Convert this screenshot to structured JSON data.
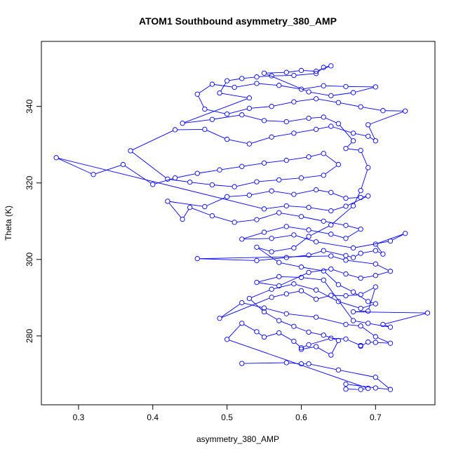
{
  "chart_data": {
    "type": "line",
    "title": "ATOM1 Southbound asymmetry_380_AMP",
    "xlabel": "asymmetry_380_AMP",
    "ylabel": "Theta (K)",
    "xlim": [
      0.25,
      0.78
    ],
    "ylim": [
      262,
      357
    ],
    "x_ticks": [
      0.3,
      0.4,
      0.5,
      0.6,
      0.7
    ],
    "x_tick_labels": [
      "0.3",
      "0.4",
      "0.5",
      "0.6",
      "0.7"
    ],
    "y_ticks": [
      280,
      300,
      320,
      340
    ],
    "y_tick_labels": [
      "280",
      "300",
      "320",
      "340"
    ],
    "markers": "open-circle",
    "series": [
      {
        "color": "#0000ff",
        "points": [
          [
            0.52,
            272.8
          ],
          [
            0.58,
            273.0
          ],
          [
            0.6,
            272.7
          ],
          [
            0.61,
            272.7
          ],
          [
            0.65,
            271.1
          ],
          [
            0.7,
            269.2
          ],
          [
            0.72,
            266.0
          ],
          [
            0.7,
            266.4
          ],
          [
            0.66,
            267.4
          ],
          [
            0.66,
            266.1
          ],
          [
            0.68,
            266.0
          ],
          [
            0.69,
            266.3
          ],
          [
            0.5,
            279.1
          ],
          [
            0.52,
            283.3
          ],
          [
            0.54,
            281.1
          ],
          [
            0.55,
            279.7
          ],
          [
            0.57,
            280.8
          ],
          [
            0.59,
            278.6
          ],
          [
            0.6,
            276.9
          ],
          [
            0.61,
            277.7
          ],
          [
            0.64,
            279.4
          ],
          [
            0.66,
            279.2
          ],
          [
            0.68,
            277.5
          ],
          [
            0.68,
            277.3
          ],
          [
            0.69,
            278.4
          ],
          [
            0.7,
            278.3
          ],
          [
            0.72,
            278.1
          ],
          [
            0.7,
            279.8
          ],
          [
            0.68,
            282.6
          ],
          [
            0.66,
            283.0
          ],
          [
            0.62,
            284.9
          ],
          [
            0.58,
            285.8
          ],
          [
            0.55,
            287.3
          ],
          [
            0.52,
            288.7
          ],
          [
            0.49,
            284.6
          ],
          [
            0.56,
            290.1
          ],
          [
            0.58,
            291.0
          ],
          [
            0.6,
            291.8
          ],
          [
            0.62,
            289.6
          ],
          [
            0.64,
            290.6
          ],
          [
            0.66,
            290.5
          ],
          [
            0.68,
            290.8
          ],
          [
            0.7,
            292.8
          ],
          [
            0.69,
            286.5
          ],
          [
            0.67,
            286.3
          ],
          [
            0.77,
            286.0
          ],
          [
            0.71,
            283.0
          ],
          [
            0.72,
            282.3
          ],
          [
            0.69,
            283.3
          ],
          [
            0.67,
            284.0
          ],
          [
            0.63,
            294.6
          ],
          [
            0.6,
            295.3
          ],
          [
            0.57,
            295.5
          ],
          [
            0.54,
            294.0
          ],
          [
            0.57,
            293.1
          ],
          [
            0.61,
            296.6
          ],
          [
            0.64,
            297.5
          ],
          [
            0.66,
            296.2
          ],
          [
            0.68,
            295.1
          ],
          [
            0.7,
            295.8
          ],
          [
            0.72,
            296.9
          ],
          [
            0.7,
            298.8
          ],
          [
            0.66,
            299.8
          ],
          [
            0.64,
            300.9
          ],
          [
            0.46,
            300.2
          ],
          [
            0.54,
            299.7
          ],
          [
            0.58,
            300.5
          ],
          [
            0.61,
            301.1
          ],
          [
            0.63,
            302.3
          ],
          [
            0.66,
            301.0
          ],
          [
            0.67,
            300.5
          ],
          [
            0.68,
            301.6
          ],
          [
            0.7,
            302.3
          ],
          [
            0.71,
            301.4
          ],
          [
            0.7,
            304.0
          ],
          [
            0.74,
            306.8
          ],
          [
            0.72,
            304.8
          ],
          [
            0.67,
            303.0
          ],
          [
            0.62,
            304.6
          ],
          [
            0.59,
            306.4
          ],
          [
            0.56,
            305.5
          ],
          [
            0.52,
            305.3
          ],
          [
            0.55,
            307.1
          ],
          [
            0.58,
            308.6
          ],
          [
            0.61,
            307.7
          ],
          [
            0.64,
            306.6
          ],
          [
            0.66,
            305.5
          ],
          [
            0.68,
            307.9
          ],
          [
            0.66,
            308.9
          ],
          [
            0.63,
            310.0
          ],
          [
            0.6,
            311.2
          ],
          [
            0.57,
            312.2
          ],
          [
            0.54,
            310.4
          ],
          [
            0.51,
            309.7
          ],
          [
            0.48,
            311.4
          ],
          [
            0.45,
            313.6
          ],
          [
            0.44,
            310.5
          ],
          [
            0.42,
            315.2
          ],
          [
            0.47,
            313.8
          ],
          [
            0.5,
            316.4
          ],
          [
            0.53,
            316.8
          ],
          [
            0.56,
            317.9
          ],
          [
            0.59,
            317.0
          ],
          [
            0.62,
            318.2
          ],
          [
            0.64,
            317.5
          ],
          [
            0.66,
            316.0
          ],
          [
            0.68,
            316.2
          ],
          [
            0.69,
            316.6
          ],
          [
            0.66,
            313.9
          ],
          [
            0.64,
            312.7
          ],
          [
            0.61,
            313.6
          ],
          [
            0.58,
            314.0
          ],
          [
            0.55,
            313.2
          ],
          [
            0.27,
            326.6
          ],
          [
            0.32,
            322.2
          ],
          [
            0.36,
            324.8
          ],
          [
            0.4,
            319.6
          ],
          [
            0.43,
            321.3
          ],
          [
            0.46,
            322.5
          ],
          [
            0.49,
            323.4
          ],
          [
            0.52,
            324.3
          ],
          [
            0.55,
            325.2
          ],
          [
            0.58,
            325.9
          ],
          [
            0.61,
            326.8
          ],
          [
            0.63,
            327.7
          ],
          [
            0.65,
            324.8
          ],
          [
            0.63,
            322.0
          ],
          [
            0.6,
            321.3
          ],
          [
            0.57,
            320.8
          ],
          [
            0.54,
            320.3
          ],
          [
            0.51,
            319.0
          ],
          [
            0.48,
            319.5
          ],
          [
            0.45,
            320.2
          ],
          [
            0.42,
            321.0
          ],
          [
            0.37,
            328.4
          ],
          [
            0.43,
            333.9
          ],
          [
            0.47,
            334.0
          ],
          [
            0.5,
            331.4
          ],
          [
            0.53,
            330.2
          ],
          [
            0.56,
            332.0
          ],
          [
            0.59,
            333.0
          ],
          [
            0.62,
            334.0
          ],
          [
            0.64,
            334.8
          ],
          [
            0.67,
            333.0
          ],
          [
            0.69,
            332.2
          ],
          [
            0.7,
            331.0
          ],
          [
            0.69,
            335.2
          ],
          [
            0.74,
            338.8
          ],
          [
            0.71,
            338.9
          ],
          [
            0.68,
            339.9
          ],
          [
            0.65,
            341.0
          ],
          [
            0.62,
            342.0
          ],
          [
            0.59,
            341.2
          ],
          [
            0.56,
            340.0
          ],
          [
            0.53,
            339.5
          ],
          [
            0.5,
            338.0
          ],
          [
            0.47,
            339.3
          ],
          [
            0.46,
            343.2
          ],
          [
            0.48,
            345.8
          ],
          [
            0.51,
            345.0
          ],
          [
            0.54,
            346.0
          ],
          [
            0.57,
            345.5
          ],
          [
            0.6,
            344.5
          ],
          [
            0.63,
            345.4
          ],
          [
            0.66,
            345.2
          ],
          [
            0.7,
            345.1
          ],
          [
            0.67,
            343.6
          ],
          [
            0.64,
            342.8
          ],
          [
            0.61,
            343.8
          ],
          [
            0.55,
            348.7
          ],
          [
            0.58,
            348.9
          ],
          [
            0.6,
            349.4
          ],
          [
            0.62,
            349.2
          ],
          [
            0.64,
            350.6
          ],
          [
            0.63,
            350.2
          ],
          [
            0.62,
            348.6
          ],
          [
            0.59,
            348.1
          ],
          [
            0.56,
            348.0
          ],
          [
            0.54,
            347.7
          ],
          [
            0.52,
            347.3
          ],
          [
            0.5,
            346.7
          ],
          [
            0.49,
            343.5
          ],
          [
            0.53,
            342.2
          ],
          [
            0.44,
            335.6
          ],
          [
            0.48,
            336.6
          ],
          [
            0.52,
            337.8
          ],
          [
            0.55,
            336.3
          ],
          [
            0.58,
            336.0
          ],
          [
            0.61,
            336.9
          ],
          [
            0.63,
            337.2
          ],
          [
            0.65,
            335.5
          ],
          [
            0.67,
            331.0
          ],
          [
            0.66,
            329.0
          ],
          [
            0.68,
            328.5
          ],
          [
            0.69,
            324.0
          ],
          [
            0.68,
            318.0
          ],
          [
            0.67,
            314.0
          ],
          [
            0.64,
            309.0
          ],
          [
            0.61,
            306.0
          ],
          [
            0.59,
            303.0
          ],
          [
            0.56,
            302.0
          ],
          [
            0.54,
            303.2
          ],
          [
            0.57,
            299.2
          ],
          [
            0.6,
            298.0
          ],
          [
            0.63,
            297.0
          ],
          [
            0.65,
            293.4
          ],
          [
            0.67,
            291.5
          ],
          [
            0.69,
            289.0
          ],
          [
            0.7,
            288.4
          ],
          [
            0.68,
            287.2
          ],
          [
            0.65,
            289.0
          ],
          [
            0.62,
            292.0
          ],
          [
            0.59,
            293.6
          ],
          [
            0.56,
            292.2
          ],
          [
            0.53,
            289.8
          ],
          [
            0.55,
            286.3
          ],
          [
            0.57,
            284.0
          ],
          [
            0.59,
            282.5
          ],
          [
            0.61,
            281.0
          ],
          [
            0.63,
            280.2
          ],
          [
            0.65,
            278.8
          ],
          [
            0.64,
            275.0
          ],
          [
            0.62,
            277.2
          ],
          [
            0.6,
            276.5
          ]
        ]
      }
    ]
  }
}
